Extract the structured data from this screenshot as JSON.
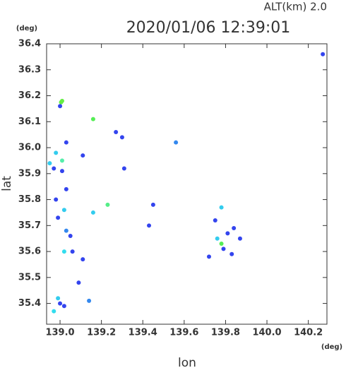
{
  "chart_data": {
    "type": "scatter",
    "title": "2020/01/06 12:39:01",
    "subtitle": "ALT(km) 2.0",
    "x_label": "lon",
    "y_label": "lat",
    "x_unit": "(deg)",
    "y_unit": "(deg)",
    "xlim": [
      138.935,
      140.29
    ],
    "ylim": [
      35.32,
      36.4
    ],
    "xticks": [
      {
        "value": 139,
        "label": "139.0"
      },
      139.2,
      139.4,
      139.6,
      139.8,
      {
        "value": 140,
        "label": "140.0"
      },
      140.2
    ],
    "yticks": [
      35.4,
      35.5,
      35.6,
      35.7,
      35.8,
      35.9,
      {
        "value": 36,
        "label": "36.0"
      },
      36.1,
      36.2,
      36.3,
      36.4
    ],
    "x": [
      139.01,
      139.005,
      139.0,
      139.16,
      139.03,
      138.98,
      139.01,
      138.95,
      138.97,
      139.01,
      139.11,
      139.31,
      139.27,
      139.3,
      139.56,
      139.03,
      138.98,
      139.02,
      139.16,
      139.23,
      138.99,
      139.03,
      139.05,
      139.06,
      139.02,
      139.11,
      139.09,
      138.99,
      139.0,
      139.02,
      138.97,
      139.14,
      140.27,
      139.78,
      139.75,
      139.76,
      139.78,
      139.79,
      139.81,
      139.84,
      139.87,
      139.72,
      139.83,
      139.45,
      139.43
    ],
    "y": [
      36.18,
      36.175,
      36.16,
      36.11,
      36.02,
      35.98,
      35.95,
      35.94,
      35.92,
      35.91,
      35.97,
      35.92,
      36.06,
      36.04,
      36.02,
      35.84,
      35.8,
      35.76,
      35.75,
      35.78,
      35.73,
      35.68,
      35.66,
      35.6,
      35.6,
      35.57,
      35.48,
      35.42,
      35.4,
      35.39,
      35.37,
      35.41,
      36.36,
      35.77,
      35.72,
      35.65,
      35.63,
      35.61,
      35.67,
      35.69,
      35.65,
      35.58,
      35.59,
      35.78,
      35.7
    ],
    "colors": [
      "#66ee44",
      "#66ee44",
      "#3344ee",
      "#55ee55",
      "#3344ee",
      "#33ccee",
      "#55eeaa",
      "#33ccee",
      "#3344ee",
      "#3344ee",
      "#3344ee",
      "#3344ee",
      "#3344ee",
      "#3344ee",
      "#3388ee",
      "#3344ee",
      "#3344ee",
      "#33ccee",
      "#33ccee",
      "#55ee88",
      "#3344ee",
      "#3388ee",
      "#3344ee",
      "#3344ee",
      "#33ddee",
      "#3344ee",
      "#3344ee",
      "#33ccee",
      "#3344ee",
      "#3344ee",
      "#33ddee",
      "#3388ee",
      "#3344ee",
      "#33ccee",
      "#3344ee",
      "#33ccee",
      "#55ee55",
      "#3344ee",
      "#3344ee",
      "#3344ee",
      "#3344ee",
      "#3344ee",
      "#3344ee",
      "#3344ee",
      "#3344ee"
    ]
  }
}
